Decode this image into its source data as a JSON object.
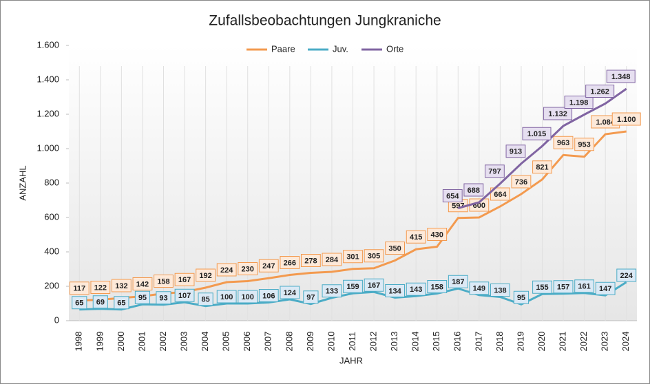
{
  "chart_data": {
    "type": "line",
    "title": "Zufallsbeobachtungen Jungkraniche",
    "x_label": "JAHR",
    "y_label": "ANZAHL",
    "categories": [
      "1998",
      "1999",
      "2000",
      "2001",
      "2002",
      "2003",
      "2004",
      "2005",
      "2006",
      "2007",
      "2008",
      "2009",
      "2010",
      "2011",
      "2012",
      "2013",
      "2014",
      "2015",
      "2016",
      "2017",
      "2018",
      "2019",
      "2020",
      "2021",
      "2022",
      "2023",
      "2024"
    ],
    "ylim": [
      0,
      1600
    ],
    "yticks": [
      0,
      200,
      400,
      600,
      800,
      {
        "value": 1000,
        "label": "1.000"
      },
      {
        "value": 1200,
        "label": "1.200"
      },
      {
        "value": 1400,
        "label": "1.400"
      },
      {
        "value": 1600,
        "label": "1.600"
      }
    ],
    "legend": "top",
    "series": [
      {
        "name": "Paare",
        "color": "#f39a4f",
        "values": [
          117,
          122,
          132,
          142,
          158,
          167,
          192,
          224,
          230,
          247,
          266,
          278,
          284,
          301,
          305,
          350,
          415,
          430,
          597,
          600,
          664,
          736,
          821,
          963,
          953,
          1084,
          1100
        ],
        "value_labels": [
          "117",
          "122",
          "132",
          "142",
          "158",
          "167",
          "192",
          "224",
          "230",
          "247",
          "266",
          "278",
          "284",
          "301",
          "305",
          "350",
          "415",
          "430",
          "597",
          "600",
          "664",
          "736",
          "821",
          "963",
          "953",
          "1.084",
          "1.100"
        ]
      },
      {
        "name": "Juv.",
        "color": "#4bacc6",
        "values": [
          65,
          69,
          65,
          95,
          93,
          107,
          85,
          100,
          100,
          106,
          124,
          97,
          133,
          159,
          167,
          134,
          143,
          158,
          187,
          149,
          138,
          95,
          155,
          157,
          161,
          147,
          224
        ],
        "value_labels": [
          "65",
          "69",
          "65",
          "95",
          "93",
          "107",
          "85",
          "100",
          "100",
          "106",
          "124",
          "97",
          "133",
          "159",
          "167",
          "134",
          "143",
          "158",
          "187",
          "149",
          "138",
          "95",
          "155",
          "157",
          "161",
          "147",
          "224"
        ]
      },
      {
        "name": "Orte",
        "color": "#8064a2",
        "values": [
          null,
          null,
          null,
          null,
          null,
          null,
          null,
          null,
          null,
          null,
          null,
          null,
          null,
          null,
          null,
          null,
          null,
          null,
          654,
          688,
          797,
          913,
          1015,
          1132,
          1198,
          1262,
          1348
        ],
        "value_labels": [
          null,
          null,
          null,
          null,
          null,
          null,
          null,
          null,
          null,
          null,
          null,
          null,
          null,
          null,
          null,
          null,
          null,
          null,
          "654",
          "688",
          "797",
          "913",
          "1.015",
          "1.132",
          "1.198",
          "1.262",
          "1.348"
        ]
      }
    ]
  }
}
